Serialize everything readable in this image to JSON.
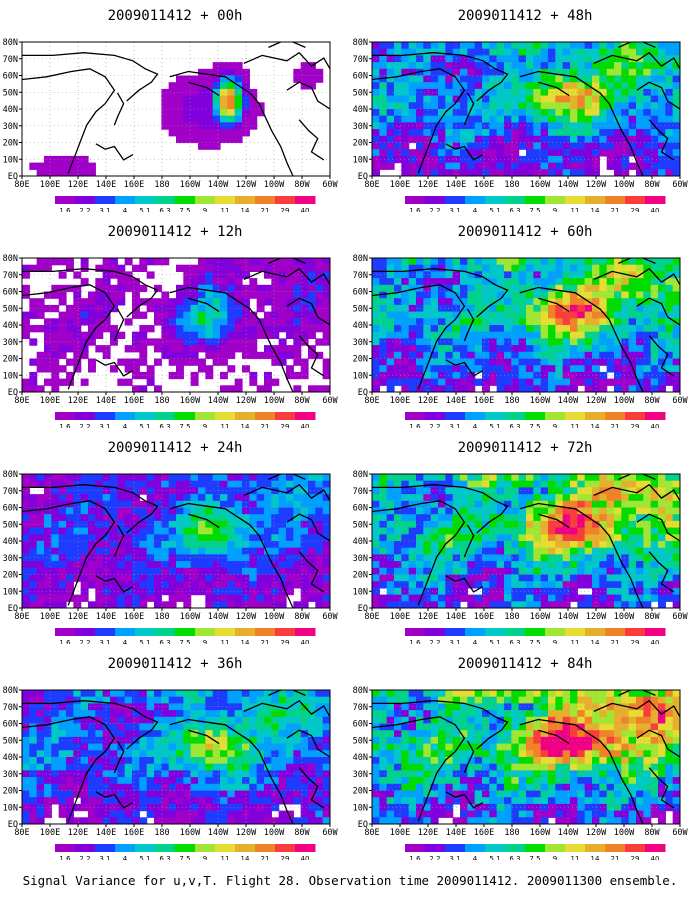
{
  "caption": "Signal Variance for u,v,T. Flight 28. Observation time 2009011412. 2009011300 ensemble.",
  "chart_data": {
    "type": "heatmap",
    "panel_count": 8,
    "panels": [
      {
        "title": "2009011412 + 00h",
        "lead_hours": 0
      },
      {
        "title": "2009011412 + 12h",
        "lead_hours": 12
      },
      {
        "title": "2009011412 + 24h",
        "lead_hours": 24
      },
      {
        "title": "2009011412 + 36h",
        "lead_hours": 36
      },
      {
        "title": "2009011412 + 48h",
        "lead_hours": 48
      },
      {
        "title": "2009011412 + 60h",
        "lead_hours": 60
      },
      {
        "title": "2009011412 + 72h",
        "lead_hours": 72
      },
      {
        "title": "2009011412 + 84h",
        "lead_hours": 84
      }
    ],
    "x_ticks": [
      "80E",
      "100E",
      "120E",
      "140E",
      "160E",
      "180",
      "160W",
      "140W",
      "120W",
      "100W",
      "80W",
      "60W"
    ],
    "y_ticks": [
      "EQ",
      "10N",
      "20N",
      "30N",
      "40N",
      "50N",
      "60N",
      "70N",
      "80N"
    ],
    "lon_range": [
      "80E",
      "60W"
    ],
    "lat_range": [
      "EQ",
      "80N"
    ],
    "colorbar": {
      "levels": [
        "1.6",
        "2.2",
        "3.1",
        "4",
        "5.1",
        "6.3",
        "7.5",
        "9",
        "11",
        "14",
        "21",
        "29",
        "40"
      ],
      "colors": [
        "#a000c8",
        "#8200dc",
        "#1e3cff",
        "#00a0ff",
        "#00c8c8",
        "#00d28c",
        "#00dc00",
        "#a0e632",
        "#e6dc32",
        "#e6af2d",
        "#f08228",
        "#fa3c3c",
        "#f00082"
      ]
    },
    "grid": true,
    "legend": "colorbar-below-each-panel"
  }
}
